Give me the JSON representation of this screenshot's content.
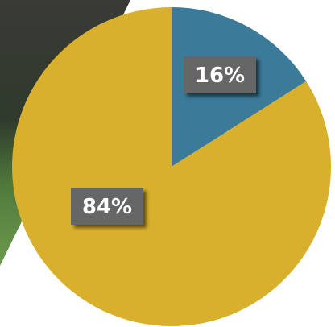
{
  "chart_data": {
    "type": "pie",
    "values": [
      16,
      84
    ],
    "value_labels": [
      "16%",
      "84%"
    ],
    "colors": [
      "#3b7a99",
      "#d9b02b"
    ]
  }
}
